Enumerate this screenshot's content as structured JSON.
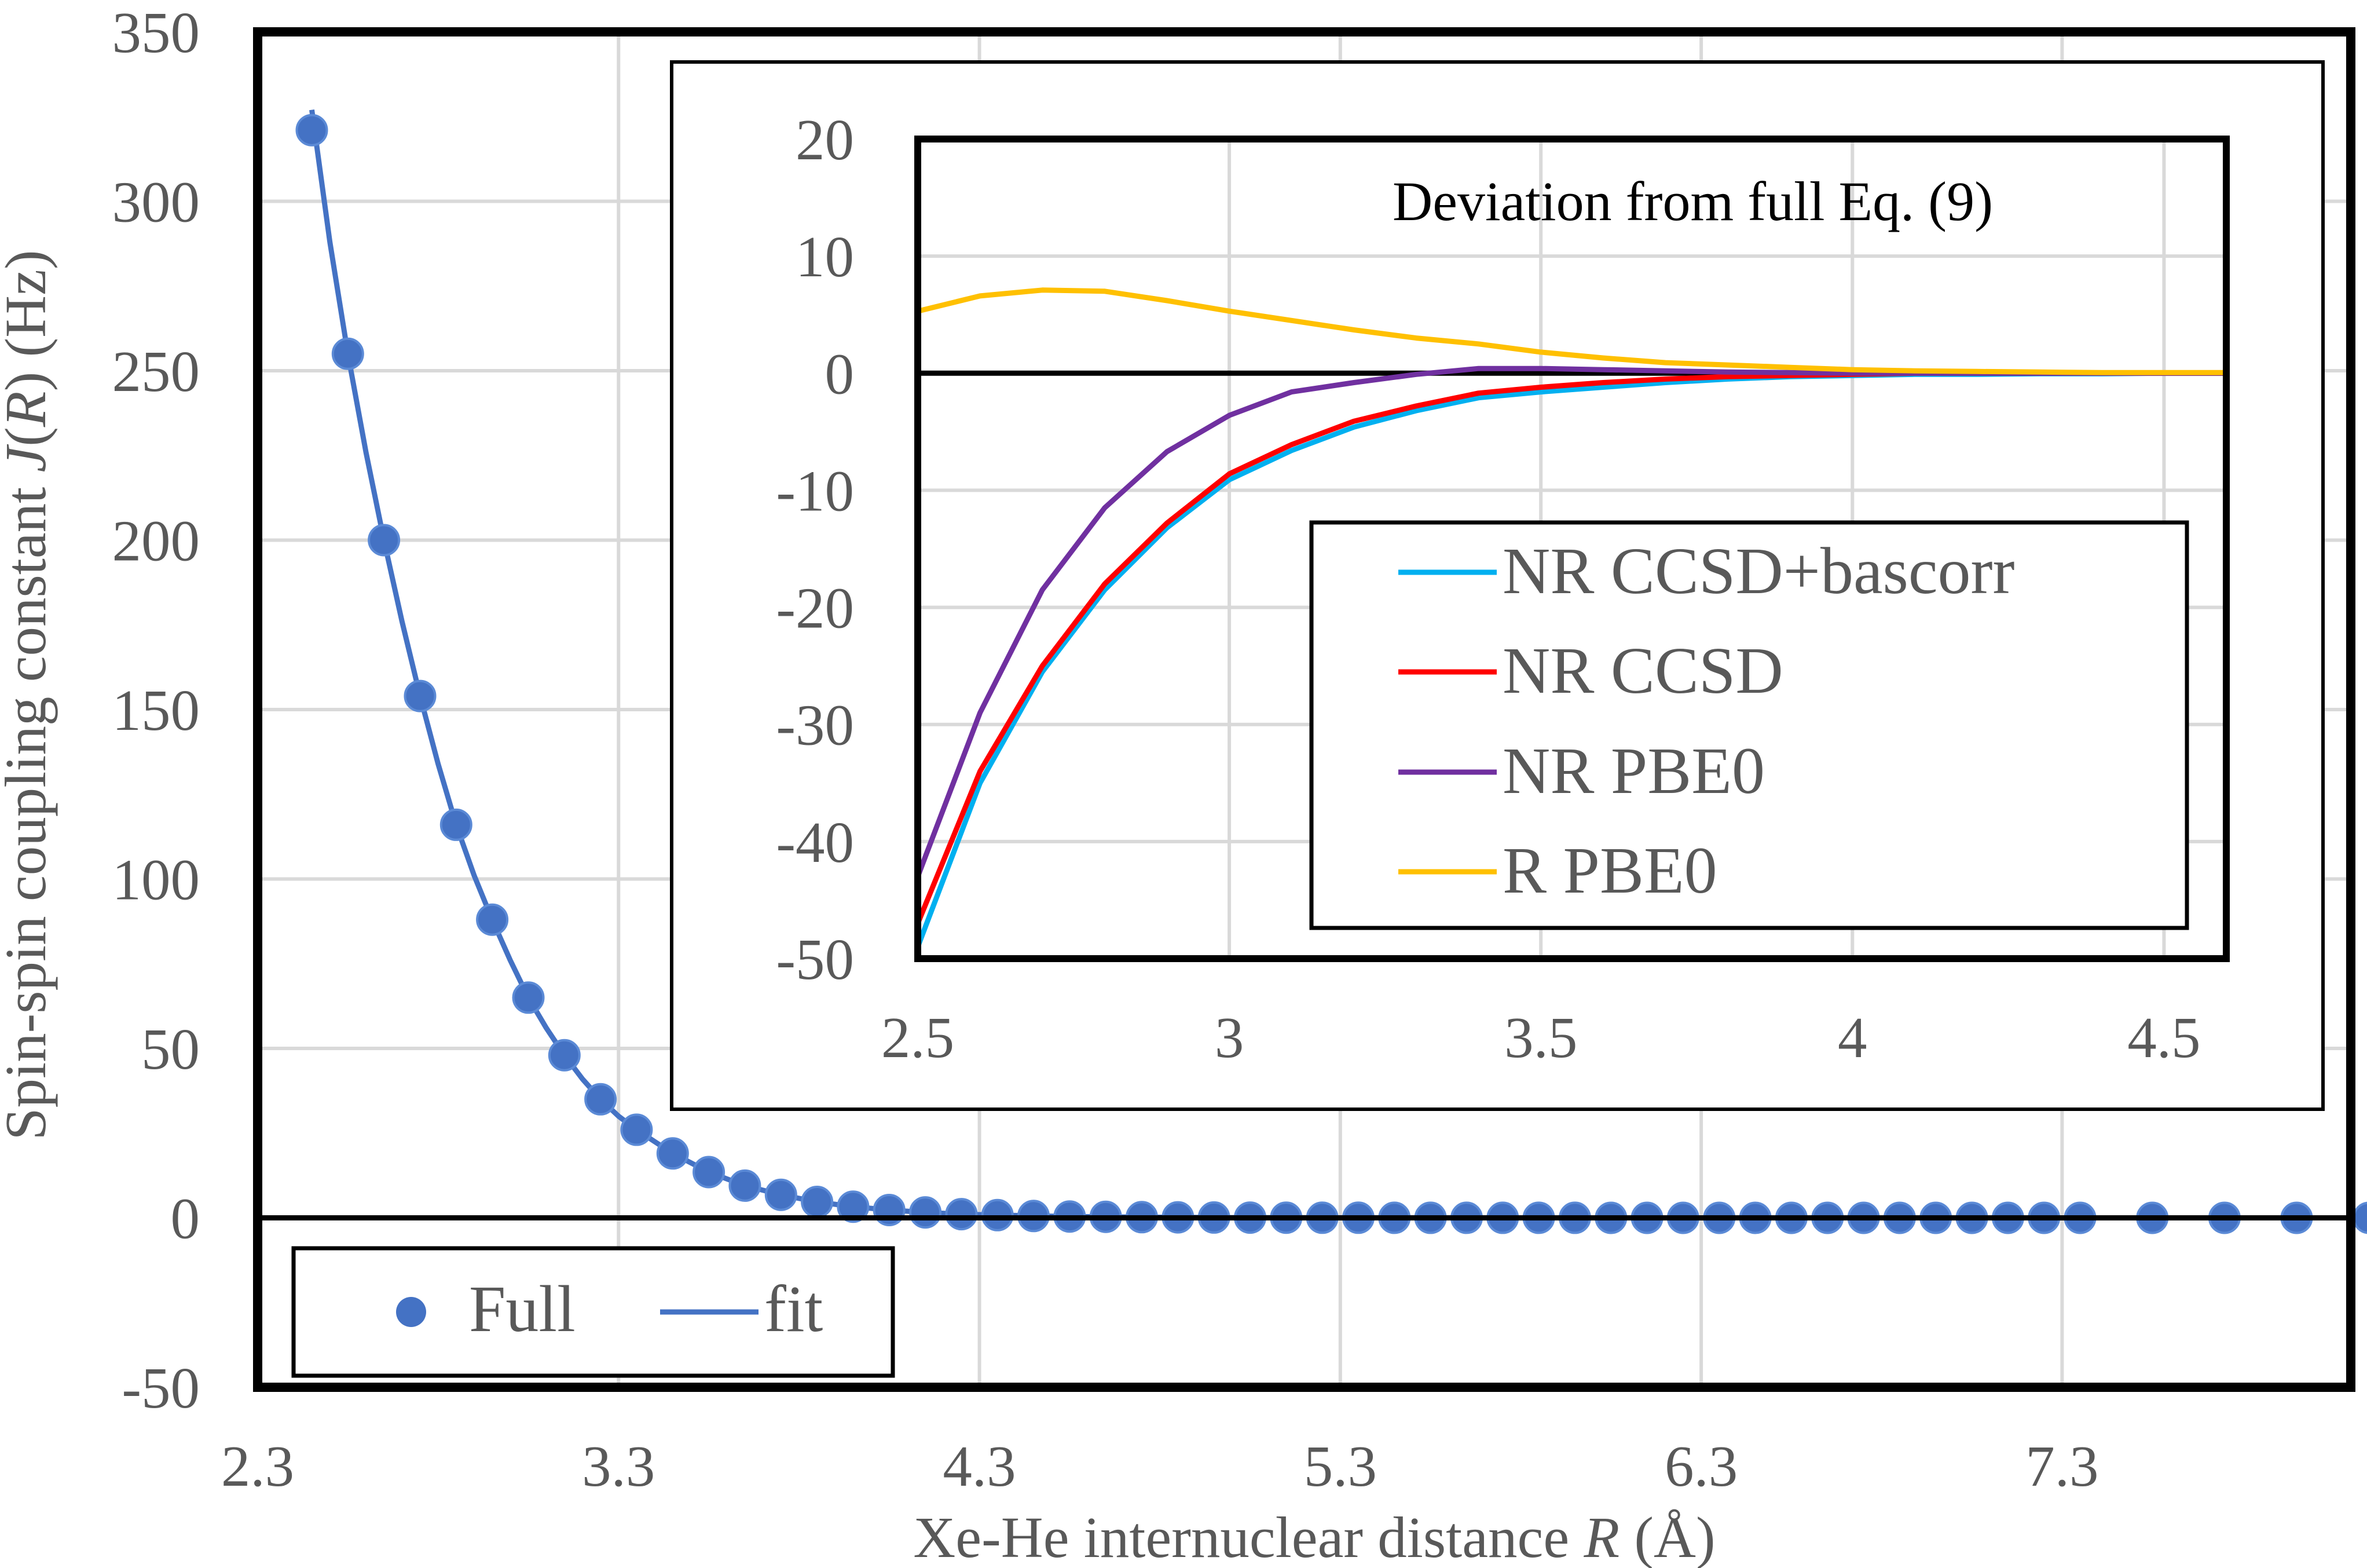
{
  "chart_data": [
    {
      "type": "scatter",
      "title": "",
      "xlabel": "Xe-He internuclear distance R (Å)",
      "ylabel": "Spin-spin coupling constant J(R) (Hz)",
      "xlabel_parts": [
        "Xe-He internuclear distance ",
        "R",
        " (Å)"
      ],
      "ylabel_parts": [
        "Spin-spin coupling constant ",
        "J",
        "(",
        "R",
        ") (Hz)"
      ],
      "xlim": [
        2.3,
        8.1
      ],
      "ylim": [
        -50,
        350
      ],
      "xticks": [
        "2.3",
        "3.3",
        "4.3",
        "5.3",
        "6.3",
        "7.3"
      ],
      "yticks": [
        "-50",
        "0",
        "50",
        "100",
        "150",
        "200",
        "250",
        "300",
        "350"
      ],
      "grid": true,
      "legend_position": "bottom-left",
      "legend": [
        "Full",
        "fit"
      ],
      "series": [
        {
          "name": "Full",
          "style": "markers",
          "color": "#4472c4",
          "x": [
            2.45,
            2.55,
            2.65,
            2.75,
            2.85,
            2.95,
            3.05,
            3.15,
            3.25,
            3.35,
            3.45,
            3.55,
            3.65,
            3.75,
            3.85,
            3.95,
            4.05,
            4.15,
            4.25,
            4.35,
            4.45,
            4.55,
            4.65,
            4.75,
            4.85,
            4.95,
            5.05,
            5.15,
            5.25,
            5.35,
            5.45,
            5.55,
            5.65,
            5.75,
            5.85,
            5.95,
            6.05,
            6.15,
            6.25,
            6.35,
            6.45,
            6.55,
            6.65,
            6.75,
            6.85,
            6.95,
            7.05,
            7.15,
            7.25,
            7.35,
            7.55,
            7.75,
            7.95,
            8.15
          ],
          "y": [
            321,
            255,
            200,
            154,
            116,
            88,
            65,
            48,
            35,
            26,
            19,
            13.5,
            9.5,
            6.8,
            4.7,
            3.3,
            2.3,
            1.6,
            1.1,
            0.8,
            0.55,
            0.4,
            0.3,
            0.2,
            0.15,
            0.1,
            0.07,
            0.05,
            0.04,
            0.03,
            0.02,
            0.015,
            0.01,
            0.01,
            0.01,
            0.01,
            0,
            0,
            0,
            0,
            0,
            0,
            0,
            0,
            0,
            0,
            0,
            0,
            0,
            0,
            0,
            0,
            0,
            0
          ]
        },
        {
          "name": "fit",
          "style": "line",
          "color": "#4472c4",
          "x": [
            2.45,
            2.5,
            2.55,
            2.6,
            2.65,
            2.7,
            2.75,
            2.8,
            2.85,
            2.9,
            2.95,
            3.0,
            3.05,
            3.1,
            3.15,
            3.2,
            3.25,
            3.3,
            3.35,
            3.45,
            3.55,
            3.65,
            3.75,
            3.85,
            3.95,
            4.05,
            4.15,
            4.25,
            4.35,
            4.55,
            4.75,
            5.0,
            5.5,
            6.0,
            6.5,
            7.0,
            7.5,
            8.15
          ],
          "y": [
            327,
            288,
            255,
            226,
            200,
            176,
            154,
            134,
            116,
            101,
            88,
            76,
            65,
            56,
            48,
            41,
            35,
            30,
            26,
            19,
            13.5,
            9.5,
            6.8,
            4.7,
            3.3,
            2.3,
            1.6,
            1.1,
            0.8,
            0.4,
            0.2,
            0.07,
            0.02,
            0,
            0,
            0,
            0,
            0
          ]
        }
      ]
    },
    {
      "type": "line",
      "title": "Deviation from full Eq. (9)",
      "xlabel": "",
      "ylabel": "",
      "xlim": [
        2.5,
        4.6
      ],
      "ylim": [
        -50,
        20
      ],
      "xticks": [
        "2.5",
        "3",
        "3.5",
        "4",
        "4.5"
      ],
      "yticks": [
        "-50",
        "-40",
        "-30",
        "-20",
        "-10",
        "0",
        "10",
        "20"
      ],
      "grid": true,
      "legend_position": "bottom-right",
      "x": [
        2.5,
        2.6,
        2.7,
        2.8,
        2.9,
        3.0,
        3.1,
        3.2,
        3.3,
        3.4,
        3.5,
        3.6,
        3.7,
        3.8,
        3.9,
        4.0,
        4.1,
        4.2,
        4.3,
        4.4,
        4.5,
        4.6
      ],
      "series": [
        {
          "name": "NR CCSD+bascorr",
          "color": "#00b0f0",
          "values": [
            -49,
            -35,
            -25.5,
            -18.5,
            -13.2,
            -9.1,
            -6.6,
            -4.6,
            -3.2,
            -2.1,
            -1.6,
            -1.2,
            -0.8,
            -0.5,
            -0.3,
            -0.2,
            -0.1,
            -0.1,
            -0.05,
            -0.05,
            0,
            0
          ]
        },
        {
          "name": "NR CCSD",
          "color": "#ff0000",
          "values": [
            -47,
            -34,
            -25,
            -18,
            -12.8,
            -8.6,
            -6.1,
            -4.1,
            -2.8,
            -1.7,
            -1.2,
            -0.8,
            -0.5,
            -0.3,
            -0.2,
            -0.1,
            0,
            0,
            0,
            0,
            0,
            0
          ]
        },
        {
          "name": "NR PBE0",
          "color": "#7030a0",
          "values": [
            -43,
            -29,
            -18.5,
            -11.5,
            -6.7,
            -3.6,
            -1.6,
            -0.8,
            -0.1,
            0.4,
            0.4,
            0.3,
            0.2,
            0.1,
            0.05,
            0,
            0,
            0,
            0,
            0,
            0,
            0
          ]
        },
        {
          "name": "R PBE0",
          "color": "#ffc000",
          "values": [
            5.3,
            6.6,
            7.1,
            7.0,
            6.2,
            5.3,
            4.5,
            3.7,
            3.0,
            2.5,
            1.8,
            1.3,
            0.9,
            0.7,
            0.5,
            0.3,
            0.2,
            0.15,
            0.1,
            0.05,
            0.05,
            0.05
          ]
        }
      ]
    }
  ]
}
